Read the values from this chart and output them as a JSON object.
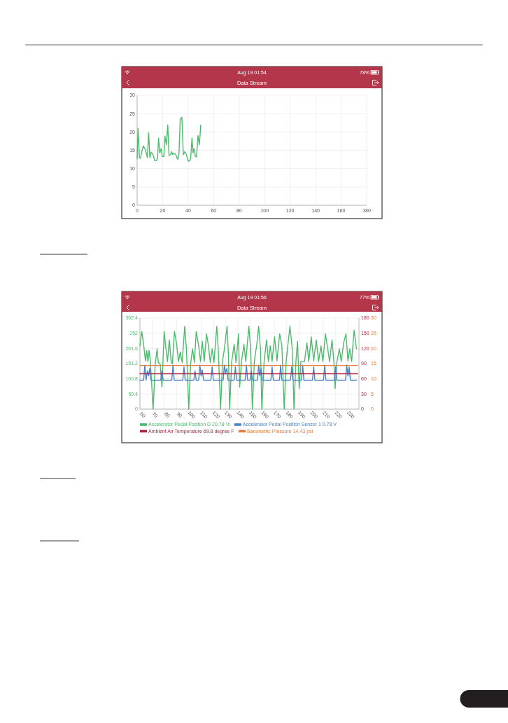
{
  "chart_data": [
    {
      "type": "line",
      "title": "Data Stream",
      "annotations": [
        "Aug 19 01:54",
        "78%"
      ],
      "x": [
        0,
        0.7,
        1.8,
        2.7,
        3.5,
        4.9,
        6.4,
        7.3,
        8,
        9,
        10,
        11,
        12.3,
        13.7,
        15.2,
        16,
        16.8,
        17.7,
        18.8,
        19.6,
        20.9,
        21.8,
        22.9,
        24,
        25,
        26.2,
        27.1,
        27.9,
        28.8,
        30.2,
        31.8,
        32.8,
        33.8,
        35.1,
        36.2,
        37.3,
        38.4,
        40.2,
        41.3,
        42,
        43,
        43.8,
        44.6,
        45.7,
        46.6,
        47.7,
        48.8,
        49.9
      ],
      "series": [
        {
          "color": "#4dbb6d",
          "values": [
            12.7,
            21.0,
            13.0,
            12.8,
            14.5,
            16.2,
            15.2,
            14.0,
            13.0,
            19.8,
            13.0,
            14.5,
            14.0,
            12.2,
            12.2,
            12.8,
            18.3,
            14.3,
            15.5,
            13.3,
            13.3,
            18.9,
            16.5,
            21.9,
            13.6,
            13.8,
            14.6,
            13.8,
            14.1,
            13.9,
            12.5,
            14.0,
            23.5,
            24.0,
            13.8,
            14.6,
            14.0,
            12.0,
            12.2,
            12.8,
            18.3,
            14.3,
            15.5,
            13.3,
            13.2,
            19.0,
            16.5,
            21.9
          ]
        }
      ],
      "xlim": [
        0,
        180
      ],
      "xticks": [
        0,
        20,
        40,
        60,
        80,
        100,
        120,
        140,
        160,
        180
      ],
      "ylim": [
        0,
        30
      ],
      "yticks": [
        0,
        5,
        10,
        15,
        20,
        25,
        30
      ],
      "grid": true
    },
    {
      "type": "line",
      "title": "Data Stream",
      "annotations": [
        "Aug 19 01:56",
        "77%"
      ],
      "xlim": [
        60,
        239
      ],
      "xticks": [
        60,
        70,
        80,
        90,
        100,
        110,
        120,
        130,
        140,
        150,
        160,
        170,
        180,
        190,
        200,
        210,
        220,
        230
      ],
      "ylim": [
        0,
        302.4
      ],
      "yticks": [
        0,
        50.4,
        100.8,
        151.2,
        201.6,
        252,
        302.4
      ],
      "y2lim": [
        0,
        180
      ],
      "y2ticks": [
        0,
        30,
        60,
        90,
        120,
        150,
        180
      ],
      "y3lim": [
        0,
        30
      ],
      "y3ticks": [
        0,
        5,
        10,
        15,
        20,
        25,
        30
      ],
      "grid": true,
      "legend": "bottom",
      "series": [
        {
          "name": "Accelerator Pedal Position D 20.78 %",
          "color": "#4dbb6d",
          "axis": "y",
          "x": [
            60,
            61.5,
            63,
            64.5,
            65.5,
            66.5,
            67.5,
            68.5,
            70.8,
            72.5,
            74,
            75,
            76.5,
            78,
            79.8,
            81,
            82.5,
            84,
            85.5,
            86.5,
            88.2,
            90,
            91.5,
            93,
            94.5,
            96.6,
            98,
            99.9,
            101.5,
            103,
            104.5,
            106,
            108,
            109.5,
            111,
            112.5,
            114.4,
            116,
            117.5,
            119,
            120.5,
            122.8,
            124,
            125.9,
            127.5,
            129,
            131.2,
            132.3,
            133.3,
            135,
            137,
            138.5,
            140.6,
            141.5,
            143,
            145,
            146.5,
            149,
            150.5,
            151.9,
            153.5,
            155.5,
            157,
            158.5,
            159.6,
            161.5,
            163.5,
            165,
            166.5,
            168,
            170,
            172,
            174.2,
            176,
            177.9,
            179.5,
            182.6,
            184.5,
            185.9,
            187.5,
            188.8,
            190.2,
            191.5,
            194.5,
            196.5,
            198,
            200,
            202,
            204.1,
            206,
            208,
            209.5,
            211.6,
            213.5,
            215,
            217,
            218.5,
            219.5,
            221,
            223,
            224.5,
            226.5,
            228.4,
            230,
            231.5,
            233,
            235,
            237
          ],
          "values": [
            210,
            258,
            215,
            160,
            195,
            158,
            195,
            160,
            0,
            150,
            200,
            155,
            150,
            73,
            258,
            210,
            158,
            230,
            158,
            150,
            258,
            215,
            158,
            190,
            155,
            275,
            200,
            0,
            155,
            200,
            155,
            258,
            210,
            158,
            225,
            158,
            250,
            210,
            155,
            200,
            155,
            275,
            200,
            0,
            160,
            200,
            275,
            180,
            0,
            158,
            215,
            155,
            250,
            73,
            158,
            215,
            158,
            275,
            200,
            0,
            158,
            215,
            275,
            200,
            0,
            158,
            230,
            158,
            210,
            158,
            240,
            160,
            250,
            210,
            0,
            160,
            275,
            200,
            0,
            160,
            225,
            68,
            158,
            158,
            220,
            158,
            240,
            160,
            230,
            158,
            210,
            158,
            250,
            200,
            158,
            230,
            158,
            68,
            158,
            200,
            158,
            220,
            250,
            160,
            200,
            158,
            262,
            200
          ]
        },
        {
          "name": "Accelerator Pedal Position Sensor 1 0.78 V",
          "color": "#4a84c6",
          "axis": "y",
          "x": [
            60,
            63,
            64,
            65,
            66,
            67,
            68,
            69,
            77,
            78,
            79,
            86,
            87,
            88,
            95,
            96,
            97,
            104,
            105,
            106,
            108,
            109,
            110,
            111,
            112,
            118,
            119,
            120,
            128,
            129,
            130,
            131,
            132,
            137,
            138,
            139,
            146,
            147,
            148,
            150,
            151,
            152,
            156,
            157,
            158,
            159,
            160,
            167,
            168,
            169,
            174,
            175,
            176,
            183,
            184,
            185,
            192,
            193,
            194,
            201,
            202,
            203,
            210,
            211,
            212,
            219,
            220,
            221,
            228,
            229,
            230,
            231,
            232,
            237
          ],
          "values": [
            96,
            96,
            146,
            96,
            127,
            110,
            135,
            96,
            96,
            127,
            96,
            96,
            146,
            96,
            96,
            140,
            96,
            96,
            127,
            96,
            96,
            146,
            110,
            130,
            96,
            96,
            140,
            96,
            96,
            146,
            120,
            135,
            96,
            96,
            140,
            96,
            96,
            146,
            96,
            96,
            127,
            96,
            96,
            146,
            110,
            135,
            96,
            96,
            140,
            96,
            96,
            146,
            96,
            96,
            140,
            96,
            96,
            146,
            96,
            96,
            140,
            96,
            96,
            146,
            96,
            96,
            140,
            96,
            96,
            146,
            110,
            140,
            96,
            96
          ]
        },
        {
          "name": "Ambient Air Temperature 69.8 degree F",
          "color": "#b0283f",
          "axis": "y2",
          "x": [
            60,
            238
          ],
          "values": [
            70,
            70
          ]
        },
        {
          "name": "Barometric Pressure 14.43 psi",
          "color": "#e27d3c",
          "axis": "y3",
          "x": [
            60,
            238
          ],
          "values": [
            14.4,
            14.4
          ]
        }
      ]
    }
  ]
}
